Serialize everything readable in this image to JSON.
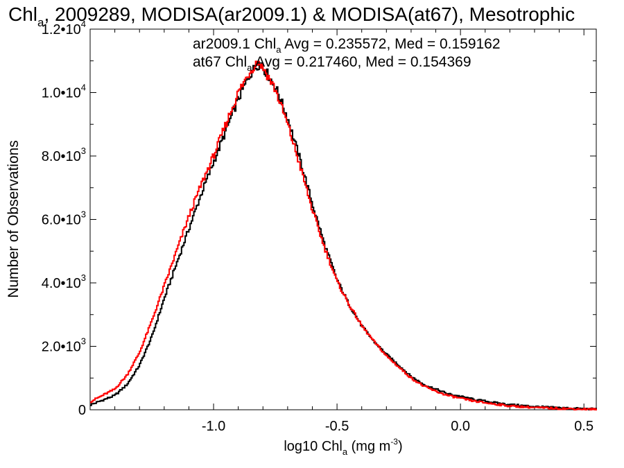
{
  "chart_data": {
    "type": "line",
    "title": {
      "prefix": "Chl",
      "prefix_sub": "a",
      "rest": ", 2009289, MODISA(ar2009.1) & MODISA(at67), Mesotrophic"
    },
    "xlabel": {
      "prefix": "log10 Chl",
      "sub": "a",
      "mid": " (mg m",
      "sup": "-3",
      "suffix": ")"
    },
    "ylabel": "Number of Observations",
    "xlim": [
      -1.5,
      0.55
    ],
    "ylim": [
      0,
      12000
    ],
    "x_ticks": [
      {
        "value": -1.0,
        "label": "-1.0"
      },
      {
        "value": -0.5,
        "label": "-0.5"
      },
      {
        "value": 0.0,
        "label": "0.0"
      },
      {
        "value": 0.5,
        "label": "0.5"
      }
    ],
    "y_ticks": [
      {
        "value": 0,
        "base": "0",
        "exp": ""
      },
      {
        "value": 2000,
        "base": "2.0•10",
        "exp": "3"
      },
      {
        "value": 4000,
        "base": "4.0•10",
        "exp": "3"
      },
      {
        "value": 6000,
        "base": "6.0•10",
        "exp": "3"
      },
      {
        "value": 8000,
        "base": "8.0•10",
        "exp": "3"
      },
      {
        "value": 10000,
        "base": "1.0•10",
        "exp": "4"
      },
      {
        "value": 12000,
        "base": "1.2•10",
        "exp": "4"
      }
    ],
    "annotations": [
      {
        "pre": "ar2009.1 Chl",
        "sub": "a",
        "post": " Avg = 0.235572, Med = 0.159162",
        "color": "#000000"
      },
      {
        "pre": "at67 Chl",
        "sub": "a",
        "post": " Avg = 0.217460, Med = 0.154369",
        "color": "#ff0000"
      }
    ],
    "series": [
      {
        "color": "#000000",
        "x": [
          -1.5,
          -1.4,
          -1.35,
          -1.3,
          -1.25,
          -1.2,
          -1.15,
          -1.1,
          -1.05,
          -1.0,
          -0.95,
          -0.9,
          -0.85,
          -0.82,
          -0.8,
          -0.75,
          -0.7,
          -0.65,
          -0.6,
          -0.55,
          -0.5,
          -0.45,
          -0.4,
          -0.35,
          -0.3,
          -0.25,
          -0.2,
          -0.15,
          -0.1,
          -0.05,
          0.0,
          0.05,
          0.1,
          0.15,
          0.2,
          0.3,
          0.4,
          0.5,
          0.55
        ],
        "values": [
          150,
          450,
          800,
          1400,
          2300,
          3500,
          4600,
          5700,
          6800,
          7800,
          8800,
          9800,
          10600,
          10900,
          10800,
          10200,
          9200,
          7900,
          6500,
          5200,
          4100,
          3300,
          2650,
          2150,
          1750,
          1400,
          1050,
          800,
          650,
          500,
          420,
          330,
          270,
          210,
          160,
          100,
          60,
          30,
          20
        ]
      },
      {
        "color": "#ff0000",
        "x": [
          -1.5,
          -1.4,
          -1.35,
          -1.3,
          -1.25,
          -1.2,
          -1.15,
          -1.1,
          -1.05,
          -1.0,
          -0.95,
          -0.9,
          -0.85,
          -0.82,
          -0.8,
          -0.75,
          -0.7,
          -0.65,
          -0.6,
          -0.55,
          -0.5,
          -0.45,
          -0.4,
          -0.35,
          -0.3,
          -0.25,
          -0.2,
          -0.15,
          -0.1,
          -0.05,
          0.0,
          0.05,
          0.1,
          0.15,
          0.2,
          0.3,
          0.4,
          0.5,
          0.55
        ],
        "values": [
          250,
          650,
          1100,
          1800,
          2800,
          3900,
          5000,
          6100,
          7100,
          8000,
          9000,
          10000,
          10700,
          11000,
          10800,
          10100,
          9000,
          7700,
          6300,
          5100,
          4050,
          3300,
          2650,
          2150,
          1700,
          1350,
          1000,
          750,
          580,
          450,
          360,
          280,
          220,
          170,
          120,
          70,
          40,
          20,
          10
        ]
      }
    ]
  }
}
